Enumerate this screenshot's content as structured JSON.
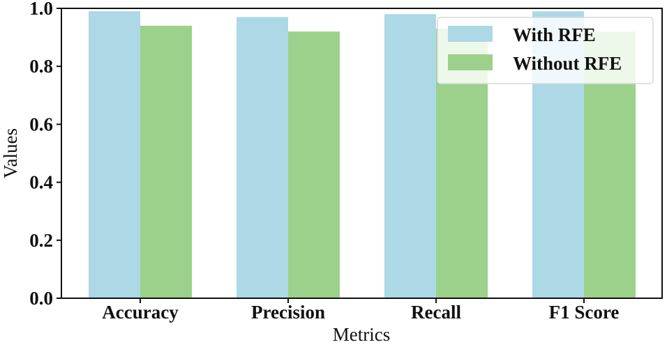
{
  "chart_data": {
    "type": "bar",
    "title": "",
    "xlabel": "Metrics",
    "ylabel": "Values",
    "categories": [
      "Accuracy",
      "Precision",
      "Recall",
      "F1 Score"
    ],
    "series": [
      {
        "name": "With RFE",
        "color": "#add8e6",
        "values": [
          0.99,
          0.97,
          0.98,
          0.99
        ]
      },
      {
        "name": "Without RFE",
        "color": "#9bd18b",
        "values": [
          0.94,
          0.92,
          0.93,
          0.92
        ]
      }
    ],
    "ylim": [
      0,
      1.0
    ],
    "yticks": [
      "0.0",
      "0.2",
      "0.4",
      "0.6",
      "0.8",
      "1.0"
    ],
    "grid": false,
    "legend_position": "top-right"
  }
}
